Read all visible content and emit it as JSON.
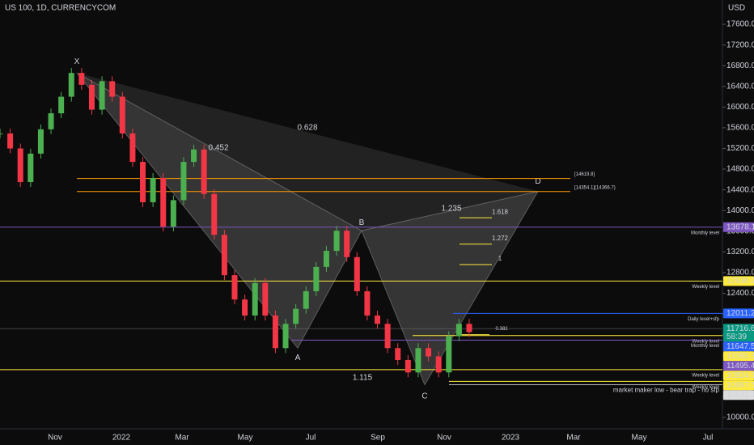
{
  "chart_data": {
    "type": "candlestick",
    "title": "US 100, 1D, CURRENCYCOM",
    "currency": "USD",
    "up_color": "#4caf50",
    "down_color": "#f23645",
    "values": [
      15490,
      15200,
      14550,
      15100,
      15570,
      15880,
      16200,
      16660,
      16430,
      15950,
      16500,
      16200,
      15490,
      14940,
      14160,
      14630,
      13690,
      14200,
      14940,
      15180,
      14320,
      13530,
      12750,
      12280,
      11970,
      12600,
      11970,
      11340,
      11810,
      12100,
      12440,
      12910,
      13220,
      13610,
      13100,
      12440,
      11970,
      11810,
      11340,
      11110,
      10870,
      11340,
      11180,
      10870,
      11570,
      11810,
      11650
    ],
    "ylim": [
      9780,
      18070
    ],
    "yticks": [
      {
        "value": 10000,
        "label": "10000.0"
      },
      {
        "value": 10400,
        "label": "10400.0"
      },
      {
        "value": 10800,
        "label": "10800.0"
      },
      {
        "value": 11200,
        "label": "11200.0"
      },
      {
        "value": 11600,
        "label": "11600.0"
      },
      {
        "value": 12000,
        "label": "12000.0"
      },
      {
        "value": 12400,
        "label": "12400.0"
      },
      {
        "value": 12800,
        "label": "12800.0"
      },
      {
        "value": 13200,
        "label": "13200.0"
      },
      {
        "value": 13600,
        "label": "13600.0"
      },
      {
        "value": 14000,
        "label": "14000.0"
      },
      {
        "value": 14400,
        "label": "14400.0"
      },
      {
        "value": 14800,
        "label": "14800.0"
      },
      {
        "value": 15200,
        "label": "15200.0"
      },
      {
        "value": 15600,
        "label": "15600.0"
      },
      {
        "value": 16000,
        "label": "16000.0"
      },
      {
        "value": 16400,
        "label": "16400.0"
      },
      {
        "value": 16800,
        "label": "16800.0"
      },
      {
        "value": 17200,
        "label": "17200.0"
      },
      {
        "value": 17600,
        "label": "17600.0"
      }
    ],
    "x_labels": [
      "Nov",
      "2022",
      "Mar",
      "May",
      "Jul",
      "Sep",
      "Nov",
      "2023",
      "Mar",
      "May",
      "Jul"
    ],
    "levels": [
      {
        "value": 14619.8,
        "label": "[14619.8]",
        "color": "#ff9800"
      },
      {
        "value": 14366.7,
        "label": "[14354.1](14366.7)",
        "color": "#ff9800"
      },
      {
        "value": 13678.1,
        "label": "Monthly level",
        "color": "#7e57c2"
      },
      {
        "value": 12636.9,
        "label": "Weekly level",
        "color": "#ffeb3b"
      },
      {
        "value": 12011.2,
        "label": "Daily level+sfp",
        "color": "#2962ff"
      },
      {
        "value": 11583.3,
        "label": "Weekly level",
        "color": "#ffeb3b"
      },
      {
        "value": 11495.4,
        "label": "Monthly level",
        "color": "#7e57c2"
      },
      {
        "value": 10924.5,
        "label": "Weekly level",
        "color": "#ffeb3b"
      },
      {
        "value": 10697.5,
        "label": "Weekly level",
        "color": "#ffeb3b"
      },
      {
        "value": 10632.1,
        "label": "market maker low - bear trap - no sfp",
        "color": "#bbbbbb"
      }
    ],
    "price_tags": [
      {
        "value": 13678.1,
        "label": "13678.1",
        "color": "#7e57c2"
      },
      {
        "value": 12636.9,
        "label": "12636.9",
        "color": "#ffeb3b"
      },
      {
        "value": 12011.2,
        "label": "12011.2",
        "color": "#2962ff"
      },
      {
        "value": 11716.6,
        "label": "11716.6",
        "color": "#089981",
        "sub": "58:39"
      },
      {
        "value": 11647.5,
        "label": "11647.5",
        "color": "#2962ff"
      },
      {
        "value": 11583.3,
        "label": "11583.3",
        "color": "#ffeb3b"
      },
      {
        "value": 11495.4,
        "label": "11495.4",
        "color": "#7e57c2"
      },
      {
        "value": 10924.5,
        "label": "10924.5",
        "color": "#ffeb3b"
      },
      {
        "value": 10697.5,
        "label": "10697.5",
        "color": "#ffeb3b"
      },
      {
        "value": 10632.1,
        "label": "10632.1",
        "color": "#dddddd"
      }
    ],
    "pattern_points": [
      {
        "label": "X",
        "price": 16660
      },
      {
        "label": "A",
        "price": 11340
      },
      {
        "label": "B",
        "price": 13610
      },
      {
        "label": "C",
        "price": 10630
      },
      {
        "label": "D",
        "price": 14370
      }
    ],
    "pattern_ratios": [
      "0.452",
      "0.628",
      "1.235",
      "1.115"
    ],
    "fib_levels": [
      {
        "ratio": "1.618",
        "price": 13860
      },
      {
        "ratio": "1.272",
        "price": 13350
      },
      {
        "ratio": "1",
        "price": 12955
      },
      {
        "ratio": "0.382",
        "price": 11600
      }
    ]
  }
}
